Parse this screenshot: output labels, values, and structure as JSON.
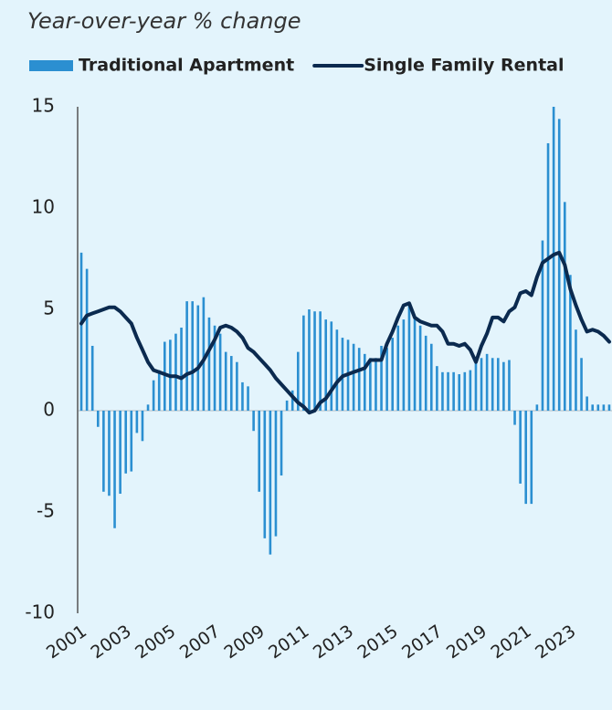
{
  "chart_data": {
    "type": "bar_line",
    "subtitle": "Year-over-year % change",
    "categories": [
      "2001",
      null,
      null,
      null,
      null,
      null,
      null,
      null,
      "2003",
      null,
      null,
      null,
      null,
      null,
      null,
      null,
      "2005",
      null,
      null,
      null,
      null,
      null,
      null,
      null,
      "2007",
      null,
      null,
      null,
      null,
      null,
      null,
      null,
      "2009",
      null,
      null,
      null,
      null,
      null,
      null,
      null,
      "2011",
      null,
      null,
      null,
      null,
      null,
      null,
      null,
      "2013",
      null,
      null,
      null,
      null,
      null,
      null,
      null,
      "2015",
      null,
      null,
      null,
      null,
      null,
      null,
      null,
      "2017",
      null,
      null,
      null,
      null,
      null,
      null,
      null,
      "2019",
      null,
      null,
      null,
      null,
      null,
      null,
      null,
      "2021",
      null,
      null,
      null,
      null,
      null,
      null,
      null,
      "2023",
      null,
      null,
      null,
      null,
      null,
      null,
      null
    ],
    "series": [
      {
        "name": "Traditional Apartment",
        "kind": "bar",
        "color": "#2b8fd1",
        "values": [
          7.8,
          7.0,
          3.2,
          -0.8,
          -4.0,
          -4.2,
          -5.8,
          -4.1,
          -3.1,
          -3.0,
          -1.1,
          -1.5,
          0.3,
          1.5,
          2.0,
          3.4,
          3.5,
          3.8,
          4.1,
          5.4,
          5.4,
          5.2,
          5.6,
          4.6,
          4.2,
          3.8,
          2.9,
          2.7,
          2.4,
          1.4,
          1.2,
          -1.0,
          -4.0,
          -6.3,
          -7.1,
          -6.2,
          -3.2,
          0.5,
          1.0,
          2.9,
          4.7,
          5.0,
          4.9,
          4.9,
          4.5,
          4.4,
          4.0,
          3.6,
          3.5,
          3.3,
          3.1,
          2.8,
          2.6,
          2.6,
          3.2,
          3.1,
          3.6,
          4.2,
          4.5,
          5.2,
          4.6,
          4.2,
          3.7,
          3.3,
          2.2,
          1.9,
          1.9,
          1.9,
          1.8,
          1.9,
          2.0,
          2.4,
          2.6,
          2.8,
          2.6,
          2.6,
          2.4,
          2.5,
          -0.7,
          -3.6,
          -4.6,
          -4.6,
          0.3,
          8.4,
          13.2,
          15.0,
          14.4,
          10.3,
          6.7,
          4.0,
          2.6,
          0.7,
          0.3,
          0.3,
          0.3,
          0.3
        ]
      },
      {
        "name": "Single Family Rental",
        "kind": "line",
        "color": "#0b2a4f",
        "values": [
          4.3,
          4.7,
          4.8,
          4.9,
          5.0,
          5.1,
          5.1,
          4.9,
          4.6,
          4.3,
          3.6,
          3.0,
          2.4,
          2.0,
          1.9,
          1.8,
          1.7,
          1.7,
          1.6,
          1.8,
          1.9,
          2.1,
          2.5,
          3.0,
          3.5,
          4.1,
          4.2,
          4.1,
          3.9,
          3.6,
          3.1,
          2.9,
          2.6,
          2.3,
          2.0,
          1.6,
          1.3,
          1.0,
          0.7,
          0.4,
          0.2,
          -0.1,
          0.0,
          0.4,
          0.6,
          1.0,
          1.4,
          1.7,
          1.8,
          1.9,
          2.0,
          2.1,
          2.5,
          2.5,
          2.5,
          3.3,
          3.9,
          4.6,
          5.2,
          5.3,
          4.6,
          4.4,
          4.3,
          4.2,
          4.2,
          3.9,
          3.3,
          3.3,
          3.2,
          3.3,
          3.0,
          2.4,
          3.2,
          3.8,
          4.6,
          4.6,
          4.4,
          4.9,
          5.1,
          5.8,
          5.9,
          5.7,
          6.6,
          7.3,
          7.5,
          7.7,
          7.8,
          7.2,
          6.0,
          5.2,
          4.5,
          3.9,
          4.0,
          3.9,
          3.7,
          3.4
        ]
      }
    ],
    "ylim": [
      -10,
      15
    ],
    "yticks": [
      -10,
      -5,
      0,
      5,
      10,
      15
    ],
    "grid": false
  }
}
